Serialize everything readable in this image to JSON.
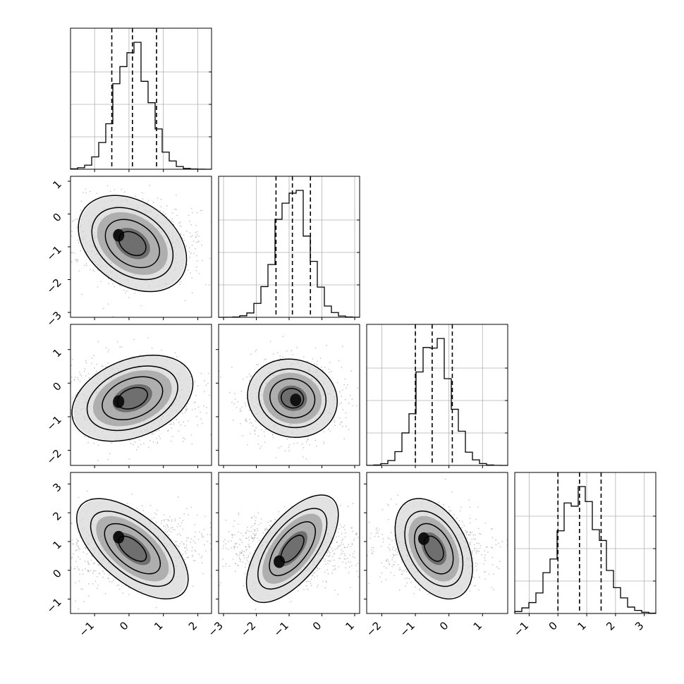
{
  "chart_data": {
    "type": "corner",
    "n_params": 4,
    "params": [
      {
        "name": "",
        "range": [
          -1.7,
          2.4
        ],
        "ticks": [
          -1,
          0,
          1,
          2
        ],
        "mean": 0.1,
        "std": 0.5,
        "quantiles": [
          -0.5,
          0.1,
          0.8
        ]
      },
      {
        "name": "",
        "range": [
          -3.15,
          1.15
        ],
        "ticks": [
          -3,
          -2,
          -1,
          0,
          1
        ],
        "mean": -0.9,
        "std": 0.5,
        "quantiles": [
          -1.4,
          -0.9,
          -0.35
        ]
      },
      {
        "name": "",
        "range": [
          -2.45,
          1.75
        ],
        "ticks": [
          -2,
          -1,
          0,
          1
        ],
        "mean": -0.45,
        "std": 0.5,
        "quantiles": [
          -1.0,
          -0.5,
          0.1
        ]
      },
      {
        "name": "",
        "range": [
          -1.5,
          3.4
        ],
        "ticks": [
          -1,
          0,
          1,
          2,
          3
        ],
        "mean": 0.75,
        "std": 0.75,
        "quantiles": [
          0.0,
          0.75,
          1.5
        ]
      }
    ],
    "pairs": [
      {
        "row": 1,
        "col": 0,
        "center": [
          0.1,
          -0.9
        ],
        "sd": [
          0.75,
          0.55
        ],
        "angle_deg": -35,
        "mode": [
          -0.3,
          -0.65
        ]
      },
      {
        "row": 2,
        "col": 0,
        "center": [
          0.1,
          -0.45
        ],
        "sd": [
          0.8,
          0.5
        ],
        "angle_deg": 22,
        "mode": [
          -0.3,
          -0.55
        ]
      },
      {
        "row": 2,
        "col": 1,
        "center": [
          -0.9,
          -0.45
        ],
        "sd": [
          0.6,
          0.5
        ],
        "angle_deg": -15,
        "mode": [
          -0.8,
          -0.5
        ]
      },
      {
        "row": 3,
        "col": 0,
        "center": [
          0.1,
          0.75
        ],
        "sd": [
          0.85,
          0.5
        ],
        "angle_deg": -40,
        "mode": [
          -0.3,
          1.15
        ]
      },
      {
        "row": 3,
        "col": 1,
        "center": [
          -0.9,
          0.75
        ],
        "sd": [
          0.85,
          0.45
        ],
        "angle_deg": 52,
        "mode": [
          -1.3,
          0.3
        ]
      },
      {
        "row": 3,
        "col": 2,
        "center": [
          -0.45,
          0.75
        ],
        "sd": [
          0.7,
          0.5
        ],
        "angle_deg": -62,
        "mode": [
          -0.75,
          1.1
        ]
      }
    ],
    "contour_levels": [
      0.5,
      1.0,
      1.5,
      2.0
    ],
    "grid": true,
    "xlabel": "",
    "ylabel": ""
  }
}
